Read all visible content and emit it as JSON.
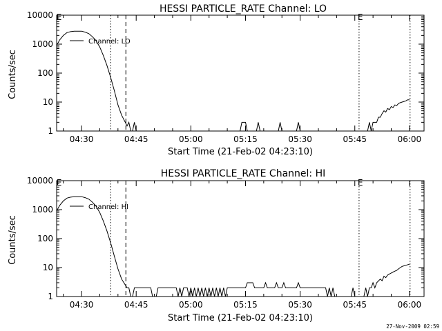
{
  "footer": {
    "timestamp": "27-Nov-2009 02:59"
  },
  "chart_data": [
    {
      "type": "line",
      "title": "HESSI PARTICLE_RATE Channel: LO",
      "xlabel": "Start Time (21-Feb-02 04:23:10)",
      "ylabel": "Counts/sec",
      "yscale": "log",
      "ylim": [
        1,
        10000
      ],
      "xlim": [
        "04:23:10",
        "06:04:00"
      ],
      "xtick_labels": [
        "04:30",
        "04:45",
        "05:00",
        "05:15",
        "05:30",
        "05:45",
        "06:00"
      ],
      "ytick_labels": [
        "1",
        "10",
        "100",
        "1000",
        "10000"
      ],
      "legend": {
        "label": "Channel: LO",
        "placement": "top-left"
      },
      "markers": [
        {
          "time": "04:23:30",
          "label": "E",
          "style": "none"
        },
        {
          "time": "04:38:00",
          "label": "",
          "style": "dotted"
        },
        {
          "time": "04:42:10",
          "label": "",
          "style": "dashed"
        },
        {
          "time": "05:46:10",
          "label": "E",
          "style": "dotted"
        },
        {
          "time": "06:00:10",
          "label": "",
          "style": "dotted"
        }
      ],
      "series": [
        {
          "segments": [
            [
              [
                "04:23:10",
                900
              ],
              [
                "04:24:00",
                1400
              ],
              [
                "04:25:00",
                2000
              ],
              [
                "04:26:00",
                2500
              ],
              [
                "04:27:00",
                2700
              ],
              [
                "04:28:00",
                2800
              ],
              [
                "04:29:00",
                2800
              ],
              [
                "04:30:00",
                2800
              ],
              [
                "04:31:00",
                2600
              ],
              [
                "04:32:00",
                2300
              ],
              [
                "04:33:00",
                1800
              ],
              [
                "04:34:00",
                1300
              ],
              [
                "04:35:00",
                800
              ],
              [
                "04:36:00",
                400
              ],
              [
                "04:37:00",
                180
              ],
              [
                "04:38:00",
                70
              ],
              [
                "04:39:00",
                25
              ],
              [
                "04:40:00",
                8
              ],
              [
                "04:41:00",
                3.5
              ],
              [
                "04:42:00",
                2
              ],
              [
                "04:42:30",
                1.5
              ],
              [
                "04:43:00",
                2
              ],
              [
                "04:43:30",
                1
              ]
            ],
            [
              [
                "04:44:00",
                1
              ],
              [
                "04:44:30",
                2
              ],
              [
                "04:45:00",
                1
              ]
            ],
            [
              [
                "05:13:30",
                1
              ],
              [
                "05:14:00",
                2
              ],
              [
                "05:15:00",
                2
              ],
              [
                "05:15:30",
                1
              ]
            ],
            [
              [
                "05:18:00",
                1
              ],
              [
                "05:18:30",
                2
              ],
              [
                "05:19:00",
                1
              ]
            ],
            [
              [
                "05:24:00",
                1
              ],
              [
                "05:24:30",
                2
              ],
              [
                "05:25:00",
                1
              ]
            ],
            [
              [
                "05:29:00",
                1
              ],
              [
                "05:29:30",
                2
              ],
              [
                "05:30:00",
                1
              ]
            ],
            [
              [
                "05:48:30",
                1
              ],
              [
                "05:49:00",
                2
              ],
              [
                "05:49:30",
                1
              ],
              [
                "05:50:00",
                2
              ],
              [
                "05:51:00",
                2
              ],
              [
                "05:51:30",
                3
              ],
              [
                "05:52:00",
                3
              ],
              [
                "05:52:30",
                4
              ],
              [
                "05:53:00",
                5
              ],
              [
                "05:53:30",
                4.5
              ],
              [
                "05:54:00",
                6
              ],
              [
                "05:54:30",
                5.5
              ],
              [
                "05:55:00",
                7
              ],
              [
                "05:55:30",
                6.5
              ],
              [
                "05:56:00",
                8
              ],
              [
                "05:56:30",
                7.5
              ],
              [
                "05:57:00",
                9
              ],
              [
                "05:57:30",
                9.5
              ],
              [
                "05:58:00",
                10
              ],
              [
                "05:58:30",
                10.5
              ],
              [
                "05:59:00",
                11
              ],
              [
                "05:59:30",
                12
              ],
              [
                "06:00:00",
                12
              ]
            ]
          ]
        }
      ]
    },
    {
      "type": "line",
      "title": "HESSI PARTICLE_RATE Channel: HI",
      "xlabel": "Start Time (21-Feb-02 04:23:10)",
      "ylabel": "Counts/sec",
      "yscale": "log",
      "ylim": [
        1,
        10000
      ],
      "xlim": [
        "04:23:10",
        "06:04:00"
      ],
      "xtick_labels": [
        "04:30",
        "04:45",
        "05:00",
        "05:15",
        "05:30",
        "05:45",
        "06:00"
      ],
      "ytick_labels": [
        "1",
        "10",
        "100",
        "1000",
        "10000"
      ],
      "legend": {
        "label": "Channel: HI",
        "placement": "top-left"
      },
      "markers": [
        {
          "time": "04:23:30",
          "label": "E",
          "style": "none"
        },
        {
          "time": "04:38:00",
          "label": "",
          "style": "dotted"
        },
        {
          "time": "04:42:10",
          "label": "",
          "style": "dashed"
        },
        {
          "time": "05:46:10",
          "label": "E",
          "style": "dotted"
        },
        {
          "time": "06:00:10",
          "label": "",
          "style": "dotted"
        }
      ],
      "series": [
        {
          "segments": [
            [
              [
                "04:23:10",
                900
              ],
              [
                "04:24:00",
                1400
              ],
              [
                "04:25:00",
                2000
              ],
              [
                "04:26:00",
                2500
              ],
              [
                "04:27:00",
                2700
              ],
              [
                "04:28:00",
                2800
              ],
              [
                "04:29:00",
                2800
              ],
              [
                "04:30:00",
                2800
              ],
              [
                "04:31:00",
                2600
              ],
              [
                "04:32:00",
                2300
              ],
              [
                "04:33:00",
                1800
              ],
              [
                "04:34:00",
                1300
              ],
              [
                "04:35:00",
                800
              ],
              [
                "04:36:00",
                400
              ],
              [
                "04:37:00",
                180
              ],
              [
                "04:38:00",
                70
              ],
              [
                "04:39:00",
                25
              ],
              [
                "04:40:00",
                9
              ],
              [
                "04:41:00",
                4
              ],
              [
                "04:42:00",
                2.5
              ],
              [
                "04:42:30",
                2
              ],
              [
                "04:43:00",
                2
              ],
              [
                "04:43:30",
                1
              ]
            ],
            [
              [
                "04:44:00",
                1
              ],
              [
                "04:44:30",
                2
              ],
              [
                "04:49:00",
                2
              ],
              [
                "04:49:30",
                1
              ],
              [
                "04:50:30",
                1
              ],
              [
                "04:51:00",
                2
              ],
              [
                "04:56:00",
                2
              ],
              [
                "04:56:30",
                1
              ],
              [
                "04:57:00",
                2
              ],
              [
                "04:57:30",
                1
              ],
              [
                "04:58:00",
                2
              ],
              [
                "04:59:00",
                2
              ],
              [
                "04:59:30",
                1
              ],
              [
                "05:00:00",
                2
              ],
              [
                "05:00:30",
                1
              ],
              [
                "05:01:00",
                2
              ],
              [
                "05:01:30",
                1
              ],
              [
                "05:02:00",
                2
              ],
              [
                "05:02:30",
                1
              ],
              [
                "05:03:00",
                2
              ],
              [
                "05:03:30",
                1
              ],
              [
                "05:04:00",
                2
              ],
              [
                "05:04:30",
                1
              ],
              [
                "05:05:00",
                2
              ],
              [
                "05:05:30",
                1
              ],
              [
                "05:06:00",
                2
              ],
              [
                "05:06:30",
                1
              ],
              [
                "05:07:00",
                2
              ],
              [
                "05:07:30",
                1
              ],
              [
                "05:08:00",
                2
              ],
              [
                "05:08:30",
                1
              ],
              [
                "05:09:00",
                2
              ],
              [
                "05:09:30",
                1
              ],
              [
                "05:10:00",
                2
              ],
              [
                "05:15:00",
                2
              ],
              [
                "05:15:30",
                3
              ],
              [
                "05:17:00",
                3
              ],
              [
                "05:17:30",
                2
              ],
              [
                "05:20:00",
                2
              ],
              [
                "05:20:30",
                3
              ],
              [
                "05:21:00",
                2
              ],
              [
                "05:23:00",
                2
              ],
              [
                "05:23:30",
                3
              ],
              [
                "05:24:00",
                2
              ],
              [
                "05:25:00",
                2
              ],
              [
                "05:25:30",
                3
              ],
              [
                "05:26:00",
                2
              ],
              [
                "05:29:00",
                2
              ],
              [
                "05:29:30",
                3
              ],
              [
                "05:30:00",
                2
              ],
              [
                "05:37:00",
                2
              ],
              [
                "05:37:30",
                1
              ],
              [
                "05:38:00",
                2
              ],
              [
                "05:38:30",
                1
              ],
              [
                "05:39:00",
                2
              ],
              [
                "05:39:30",
                1
              ]
            ],
            [
              [
                "05:44:00",
                1
              ],
              [
                "05:44:30",
                2
              ],
              [
                "05:45:00",
                1
              ]
            ],
            [
              [
                "05:47:30",
                1
              ],
              [
                "05:48:00",
                2
              ],
              [
                "05:48:30",
                1
              ],
              [
                "05:49:00",
                2
              ],
              [
                "05:49:30",
                2
              ],
              [
                "05:50:00",
                3
              ],
              [
                "05:50:30",
                2
              ],
              [
                "05:51:00",
                3
              ],
              [
                "05:52:00",
                4
              ],
              [
                "05:52:30",
                3.5
              ],
              [
                "05:53:00",
                5
              ],
              [
                "05:53:30",
                4.5
              ],
              [
                "05:54:00",
                5.5
              ],
              [
                "05:54:30",
                6
              ],
              [
                "05:55:00",
                6.5
              ],
              [
                "05:55:30",
                7
              ],
              [
                "05:56:00",
                7.5
              ],
              [
                "05:56:30",
                8
              ],
              [
                "05:57:00",
                9
              ],
              [
                "05:57:30",
                10
              ],
              [
                "05:58:00",
                11
              ],
              [
                "05:58:30",
                11.5
              ],
              [
                "05:59:00",
                12
              ],
              [
                "06:00:00",
                13
              ]
            ]
          ]
        }
      ]
    }
  ]
}
